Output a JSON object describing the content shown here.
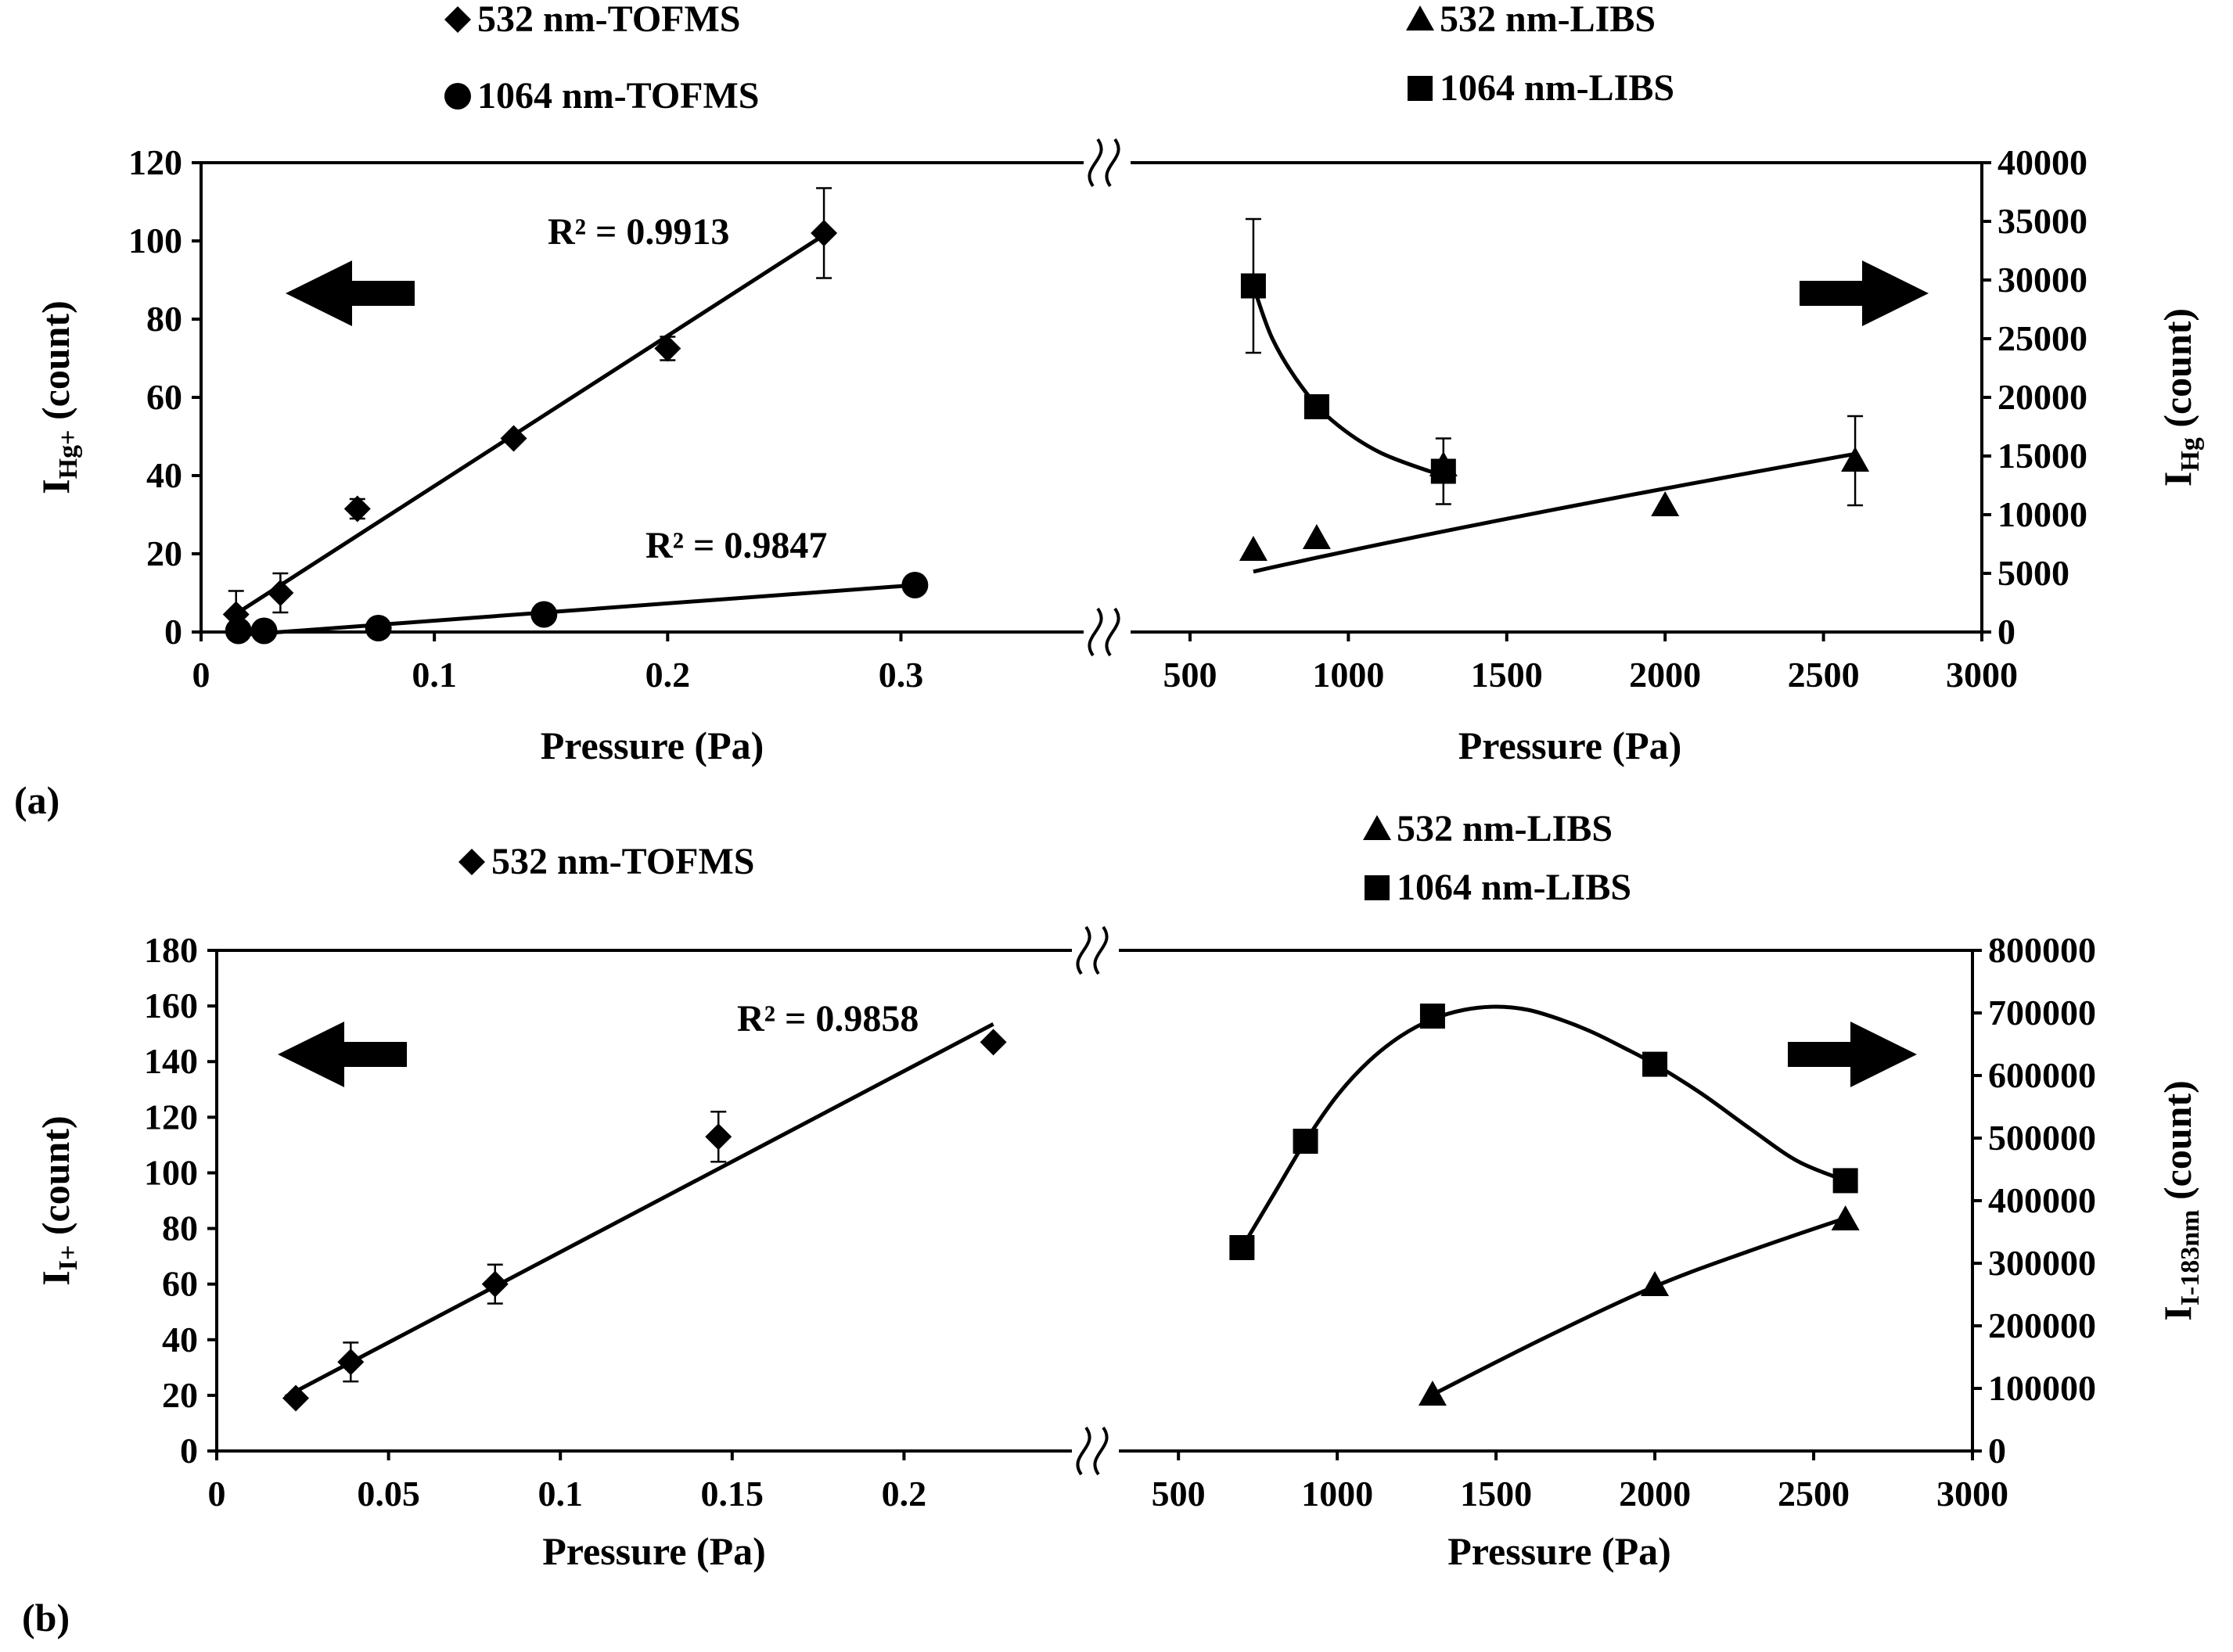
{
  "chart_data": [
    {
      "panel": "(a)",
      "type": "scatter",
      "left": {
        "ylabel": "I",
        "ylabel_sub": "Hg+",
        "ylabel_tail": " (count)",
        "ylim": [
          0,
          120
        ],
        "yticks": [
          0,
          20,
          40,
          60,
          80,
          100,
          120
        ],
        "xlabel": "Pressure (Pa)",
        "xlim": [
          0,
          0.38
        ],
        "xticks": [
          0,
          0.1,
          0.2,
          0.3
        ],
        "xtick_labels": [
          "0",
          "0.1",
          "0.2",
          "0.3"
        ],
        "series": [
          {
            "name": "532 nm-TOFMS",
            "marker": "diamond",
            "x": [
              0.015,
              0.034,
              0.067,
              0.134,
              0.2,
              0.267
            ],
            "y": [
              4.5,
              10,
              31.5,
              49.5,
              72.5,
              102
            ],
            "err": [
              6,
              5,
              2.5,
              1,
              3,
              11.5
            ],
            "fit": {
              "kind": "linear",
              "x": [
                0.012,
                0.267
              ],
              "y": [
                3.5,
                101.5
              ],
              "r2_label": "R² = 0.9913"
            }
          },
          {
            "name": "1064 nm-TOFMS",
            "marker": "circle",
            "x": [
              0.016,
              0.027,
              0.076,
              0.147,
              0.306
            ],
            "y": [
              0.3,
              0.3,
              1,
              4.5,
              12
            ],
            "err": [
              0,
              0,
              0,
              0,
              0
            ],
            "fit": {
              "kind": "linear",
              "x": [
                0.016,
                0.306
              ],
              "y": [
                -0.8,
                12
              ],
              "r2_label": "R² = 0.9847"
            }
          }
        ]
      },
      "right": {
        "ylabel": "I",
        "ylabel_sub": "Hg",
        "ylabel_tail": " (count)",
        "ylim": [
          0,
          40000
        ],
        "yticks": [
          0,
          5000,
          10000,
          15000,
          20000,
          25000,
          30000,
          35000,
          40000
        ],
        "xlabel": "Pressure (Pa)",
        "xlim": [
          300,
          3000
        ],
        "xticks": [
          500,
          1000,
          1500,
          2000,
          2500,
          3000
        ],
        "series": [
          {
            "name": "532 nm-LIBS",
            "marker": "triangle",
            "x": [
              700,
              900,
              1300,
              2000,
              2600
            ],
            "y": [
              7000,
              8000,
              14200,
              10800,
              14600
            ],
            "err": [
              0,
              0,
              0,
              0,
              3800
            ],
            "fit": {
              "kind": "power",
              "a": 23.3,
              "b": 0.824,
              "xrange": [
                700,
                2600
              ]
            }
          },
          {
            "name": "1064 nm-LIBS",
            "marker": "square",
            "x": [
              700,
              900,
              1300
            ],
            "y": [
              29500,
              19200,
              13700
            ],
            "err": [
              5700,
              0,
              2800
            ],
            "fit": {
              "kind": "curve",
              "x": [
                700,
                760,
                850,
                950,
                1100,
                1300
              ],
              "y": [
                29500,
                25000,
                21000,
                18000,
                15300,
                13300
              ]
            }
          }
        ]
      }
    },
    {
      "panel": "(b)",
      "type": "scatter",
      "left": {
        "ylabel": "I",
        "ylabel_sub": "I+",
        "ylabel_tail": " (count)",
        "ylim": [
          0,
          180
        ],
        "yticks": [
          0,
          20,
          40,
          60,
          80,
          100,
          120,
          140,
          160,
          180
        ],
        "xlabel": "Pressure (Pa)",
        "xlim": [
          0,
          0.25
        ],
        "xticks": [
          0,
          0.05,
          0.1,
          0.15,
          0.2
        ],
        "xtick_labels": [
          "0",
          "0.05",
          "0.1",
          "0.15",
          "0.2"
        ],
        "series": [
          {
            "name": "532 nm-TOFMS",
            "marker": "diamond",
            "x": [
              0.023,
              0.039,
              0.081,
              0.146,
              0.226
            ],
            "y": [
              19,
              32,
              60,
              113,
              147
            ],
            "err": [
              0,
              7,
              7,
              9,
              0
            ],
            "fit": {
              "kind": "linear",
              "x": [
                0.02,
                0.226
              ],
              "y": [
                19.5,
                153.5
              ],
              "r2_label": "R² = 0.9858"
            }
          }
        ]
      },
      "right": {
        "ylabel": "I",
        "ylabel_sub": "I-183nm",
        "ylabel_tail": " (count)",
        "ylim": [
          0,
          800000
        ],
        "yticks": [
          0,
          100000,
          200000,
          300000,
          400000,
          500000,
          600000,
          700000,
          800000
        ],
        "xlabel": "Pressure (Pa)",
        "xlim": [
          300,
          3000
        ],
        "xticks": [
          500,
          1000,
          1500,
          2000,
          2500,
          3000
        ],
        "series": [
          {
            "name": "532 nm-LIBS",
            "marker": "triangle",
            "x": [
              1300,
              2000,
              2600
            ],
            "y": [
              90000,
              265000,
              370000
            ],
            "err": [
              0,
              0,
              0
            ],
            "fit": {
              "kind": "curve",
              "x": [
                1300,
                1650,
                2000,
                2300,
                2600
              ],
              "y": [
                90000,
                180000,
                263000,
                320000,
                372000
              ]
            }
          },
          {
            "name": "1064 nm-LIBS",
            "marker": "square",
            "x": [
              700,
              900,
              1300,
              2000,
              2600
            ],
            "y": [
              325000,
              495000,
              695000,
              618000,
              432000
            ],
            "err": [
              0,
              0,
              0,
              0,
              0
            ],
            "fit": {
              "kind": "curve",
              "x": [
                700,
                800,
                900,
                1000,
                1100,
                1200,
                1300,
                1400,
                1500,
                1600,
                1700,
                1800,
                1900,
                2000,
                2150,
                2300,
                2450,
                2600
              ],
              "y": [
                325000,
                410000,
                495000,
                568000,
                623000,
                663000,
                690000,
                705000,
                710000,
                705000,
                690000,
                670000,
                645000,
                618000,
                570000,
                515000,
                463000,
                432000
              ]
            }
          }
        ]
      }
    }
  ]
}
